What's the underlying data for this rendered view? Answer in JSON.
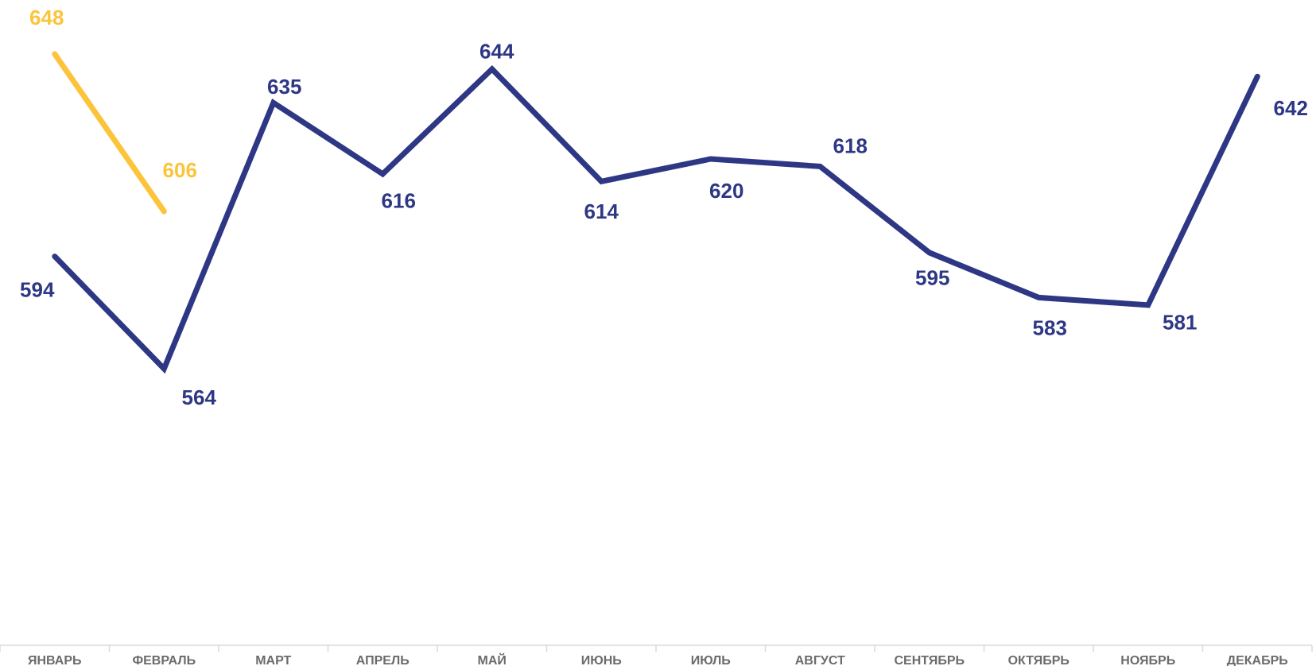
{
  "chart_data": {
    "type": "line",
    "categories": [
      "ЯНВАРЬ",
      "ФЕВРАЛЬ",
      "МАРТ",
      "АПРЕЛЬ",
      "МАЙ",
      "ИЮНЬ",
      "ИЮЛЬ",
      "АВГУСТ",
      "СЕНТЯБРЬ",
      "ОКТЯБРЬ",
      "НОЯБРЬ",
      "ДЕКАБРЬ"
    ],
    "series": [
      {
        "color": "#2e3784",
        "values": [
          594,
          564,
          635,
          616,
          644,
          614,
          620,
          618,
          595,
          583,
          581,
          642
        ]
      },
      {
        "color": "#fbc43a",
        "values": [
          648,
          606,
          null,
          null,
          null,
          null,
          null,
          null,
          null,
          null,
          null,
          null
        ]
      }
    ],
    "title": "",
    "xlabel": "",
    "ylabel": "",
    "legend": "none",
    "grid": false,
    "ylim": [
      490,
      655
    ],
    "axis_color": "#d9d9d9"
  }
}
